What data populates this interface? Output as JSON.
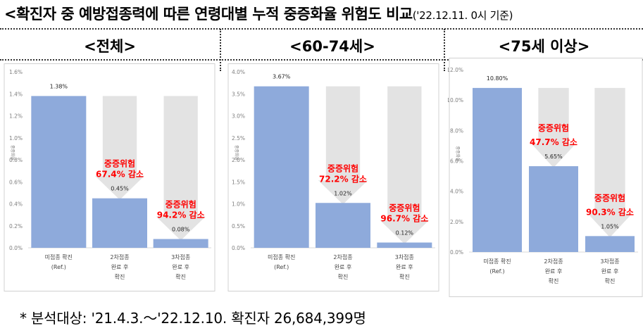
{
  "title": {
    "main": "<확진자 중 예방접종력에 따른 연령대별 누적 중증화율 위험도 비교",
    "date": "('22.12.11. 0시 기준)"
  },
  "footnote": "* 분석대상: '21.4.3.～'22.12.10. 확진자 26,684,399명",
  "colors": {
    "bar": "#8eaadb",
    "arrow": "#e3e3e3",
    "risk_text": "#ff0000",
    "axis_text": "#7f7f7f"
  },
  "panels": [
    {
      "title": "<전체>"
    },
    {
      "title": "<60-74세>"
    },
    {
      "title": "<75세 이상>"
    }
  ],
  "chart_data": [
    {
      "type": "bar",
      "title": "<전체>",
      "ylabel": "중증화율",
      "categories": [
        [
          "미접종 확진",
          "(Ref.)"
        ],
        [
          "2차접종",
          "완료 후",
          "확진"
        ],
        [
          "3차접종",
          "완료 후",
          "확진"
        ]
      ],
      "values": [
        1.38,
        0.45,
        0.08
      ],
      "value_labels": [
        "1.38%",
        "0.45%",
        "0.08%"
      ],
      "ylim": [
        0,
        1.6
      ],
      "yticks": [
        "0.0%",
        "0.2%",
        "0.4%",
        "0.6%",
        "0.8%",
        "1.0%",
        "1.2%",
        "1.4%",
        "1.6%"
      ],
      "annotations": [
        {
          "bar": 1,
          "lines": [
            "중증위험",
            "67.4% 감소"
          ]
        },
        {
          "bar": 2,
          "lines": [
            "중증위험",
            "94.2% 감소"
          ]
        }
      ]
    },
    {
      "type": "bar",
      "title": "<60-74세>",
      "ylabel": "중증화율",
      "categories": [
        [
          "미접종 확진",
          "(Ref.)"
        ],
        [
          "2차접종",
          "완료 후",
          "확진"
        ],
        [
          "3차접종",
          "완료 후",
          "확진"
        ]
      ],
      "values": [
        3.67,
        1.02,
        0.12
      ],
      "value_labels": [
        "3.67%",
        "1.02%",
        "0.12%"
      ],
      "ylim": [
        0,
        4.0
      ],
      "yticks": [
        "0.0%",
        "0.5%",
        "1.0%",
        "1.5%",
        "2.0%",
        "2.5%",
        "3.0%",
        "3.5%",
        "4.0%"
      ],
      "annotations": [
        {
          "bar": 1,
          "lines": [
            "중증위험",
            "72.2% 감소"
          ]
        },
        {
          "bar": 2,
          "lines": [
            "중증위험",
            "96.7% 감소"
          ]
        }
      ]
    },
    {
      "type": "bar",
      "title": "<75세 이상>",
      "ylabel": "중증화율",
      "categories": [
        [
          "미접종 확진",
          "(Ref.)"
        ],
        [
          "2차접종",
          "완료 후",
          "확진"
        ],
        [
          "3차접종",
          "완료 후",
          "확진"
        ]
      ],
      "values": [
        10.8,
        5.65,
        1.05
      ],
      "value_labels": [
        "10.80%",
        "5.65%",
        "1.05%"
      ],
      "ylim": [
        0,
        12.0
      ],
      "yticks": [
        "0.0%",
        "2.0%",
        "4.0%",
        "6.0%",
        "8.0%",
        "10.0%",
        "12.0%"
      ],
      "annotations": [
        {
          "bar": 1,
          "lines": [
            "중증위험",
            "47.7% 감소"
          ]
        },
        {
          "bar": 2,
          "lines": [
            "중증위험",
            "90.3% 감소"
          ]
        }
      ]
    }
  ]
}
